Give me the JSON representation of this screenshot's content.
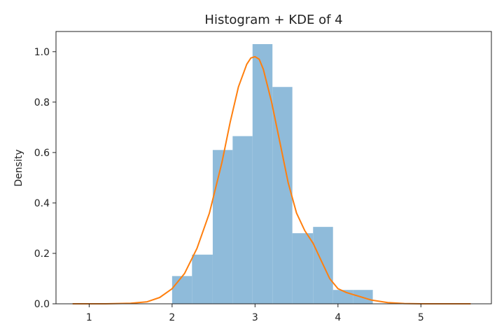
{
  "chart_data": {
    "type": "bar",
    "title": "Histogram + KDE of 4",
    "xlabel": "",
    "ylabel": "Density",
    "xlim": [
      0.6,
      5.85
    ],
    "ylim": [
      0,
      1.08
    ],
    "xticks": [
      1,
      2,
      3,
      4,
      5
    ],
    "yticks": [
      0.0,
      0.2,
      0.4,
      0.6,
      0.8,
      1.0
    ],
    "ytick_labels": [
      "0.0",
      "0.2",
      "0.4",
      "0.6",
      "0.8",
      "1.0"
    ],
    "grid": false,
    "histogram": {
      "color": "#8fbbda",
      "bins": [
        {
          "x0": 2.0,
          "x1": 2.24,
          "density": 0.11
        },
        {
          "x0": 2.24,
          "x1": 2.49,
          "density": 0.195
        },
        {
          "x0": 2.49,
          "x1": 2.73,
          "density": 0.61
        },
        {
          "x0": 2.73,
          "x1": 2.97,
          "density": 0.665
        },
        {
          "x0": 2.97,
          "x1": 3.21,
          "density": 1.03
        },
        {
          "x0": 3.21,
          "x1": 3.45,
          "density": 0.86
        },
        {
          "x0": 3.45,
          "x1": 3.7,
          "density": 0.28
        },
        {
          "x0": 3.7,
          "x1": 3.94,
          "density": 0.305
        },
        {
          "x0": 3.94,
          "x1": 4.18,
          "density": 0.055
        },
        {
          "x0": 4.18,
          "x1": 4.42,
          "density": 0.055
        }
      ]
    },
    "kde": {
      "color": "#ff7f0e",
      "x": [
        0.8,
        1.2,
        1.5,
        1.7,
        1.85,
        2.0,
        2.15,
        2.3,
        2.45,
        2.6,
        2.7,
        2.8,
        2.9,
        2.95,
        3.0,
        3.05,
        3.1,
        3.2,
        3.3,
        3.4,
        3.5,
        3.6,
        3.7,
        3.8,
        3.9,
        4.0,
        4.1,
        4.2,
        4.4,
        4.6,
        4.8,
        5.0,
        5.3,
        5.6
      ],
      "y": [
        0.0,
        0.0,
        0.002,
        0.008,
        0.025,
        0.06,
        0.12,
        0.22,
        0.36,
        0.56,
        0.72,
        0.86,
        0.95,
        0.975,
        0.98,
        0.97,
        0.93,
        0.8,
        0.64,
        0.48,
        0.36,
        0.29,
        0.24,
        0.17,
        0.1,
        0.06,
        0.045,
        0.035,
        0.015,
        0.005,
        0.001,
        0.0,
        0.0,
        0.0
      ]
    }
  }
}
